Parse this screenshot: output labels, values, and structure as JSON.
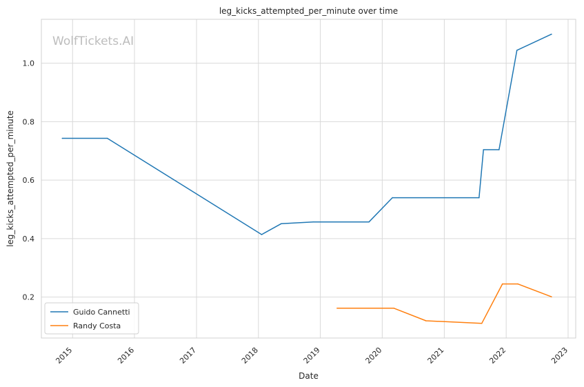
{
  "chart_data": {
    "type": "line",
    "title": "leg_kicks_attempted_per_minute over time",
    "xlabel": "Date",
    "ylabel": "leg_kicks_attempted_per_minute",
    "watermark": "WolfTickets.AI",
    "xlim": [
      "2014-07-01",
      "2023-02-15"
    ],
    "ylim": [
      0.06,
      1.15
    ],
    "xticks": [
      "2015",
      "2016",
      "2017",
      "2018",
      "2019",
      "2020",
      "2021",
      "2022",
      "2023"
    ],
    "yticks": [
      "0.2",
      "0.4",
      "0.6",
      "0.8",
      "1.0"
    ],
    "grid": true,
    "legend_position": "lower-left",
    "series": [
      {
        "name": "Guido Cannetti",
        "color": "#1f77b4",
        "points": [
          {
            "x": "2014-11-01",
            "y": 0.743
          },
          {
            "x": "2015-07-25",
            "y": 0.743
          },
          {
            "x": "2018-01-20",
            "y": 0.414
          },
          {
            "x": "2018-05-15",
            "y": 0.451
          },
          {
            "x": "2018-11-20",
            "y": 0.457
          },
          {
            "x": "2019-10-15",
            "y": 0.457
          },
          {
            "x": "2020-03-01",
            "y": 0.54
          },
          {
            "x": "2021-07-25",
            "y": 0.54
          },
          {
            "x": "2021-08-20",
            "y": 0.704
          },
          {
            "x": "2021-11-20",
            "y": 0.704
          },
          {
            "x": "2022-03-05",
            "y": 1.044
          },
          {
            "x": "2022-09-25",
            "y": 1.099
          }
        ]
      },
      {
        "name": "Randy Costa",
        "color": "#ff7f0e",
        "points": [
          {
            "x": "2019-04-10",
            "y": 0.162
          },
          {
            "x": "2020-03-10",
            "y": 0.162
          },
          {
            "x": "2020-09-15",
            "y": 0.119
          },
          {
            "x": "2021-08-10",
            "y": 0.11
          },
          {
            "x": "2021-12-10",
            "y": 0.245
          },
          {
            "x": "2022-03-10",
            "y": 0.245
          },
          {
            "x": "2022-09-25",
            "y": 0.201
          }
        ]
      }
    ]
  }
}
